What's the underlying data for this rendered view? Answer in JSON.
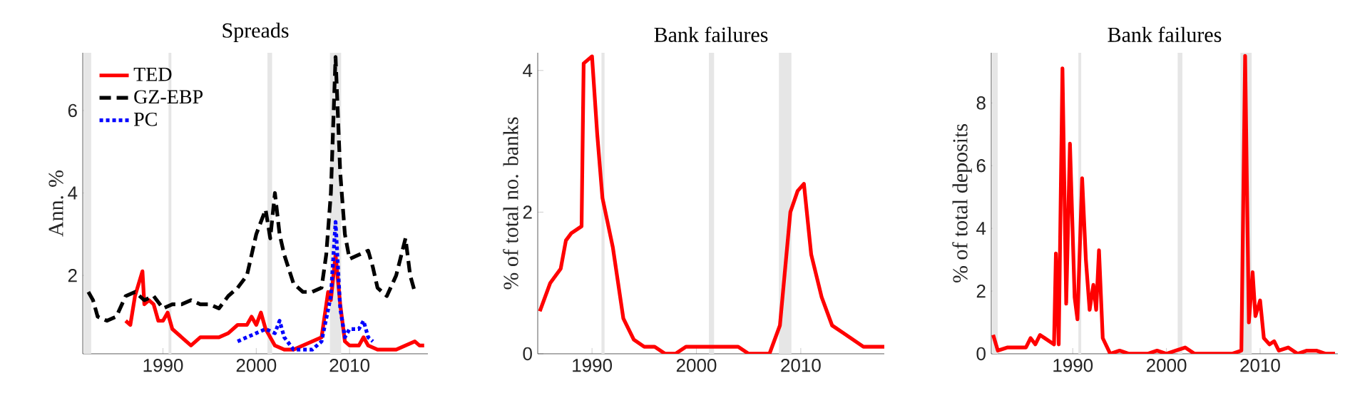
{
  "chart_data": [
    {
      "type": "line",
      "title": "Spreads",
      "ylabel": "Ann. %",
      "xlim": [
        1981.4,
        2018.4
      ],
      "ylim": [
        0.1,
        7.4
      ],
      "xticks": [
        1990,
        2000,
        2010
      ],
      "yticks": [
        2,
        4,
        6
      ],
      "legend": "top left",
      "bands": [
        {
          "axis": "x",
          "from": 1981.5,
          "to": 1982.3,
          "color": "#e6e6e6"
        },
        {
          "axis": "x",
          "from": 1990.6,
          "to": 1990.9,
          "color": "#e6e6e6"
        },
        {
          "axis": "x",
          "from": 2001.2,
          "to": 2001.7,
          "color": "#e6e6e6"
        },
        {
          "axis": "x",
          "from": 2007.9,
          "to": 2009.1,
          "color": "#e6e6e6"
        }
      ],
      "series": [
        {
          "name": "TED",
          "color": "#ff0000",
          "line_style": "solid",
          "x": [
            1986,
            1986.5,
            1987,
            1987.8,
            1988,
            1988.5,
            1989,
            1989.5,
            1990,
            1990.5,
            1991,
            1992,
            1992.5,
            1993,
            1994,
            1995,
            1996,
            1997,
            1998,
            1999,
            1999.5,
            2000,
            2000.5,
            2001,
            2002,
            2003,
            2004,
            2005,
            2006,
            2007,
            2007.7,
            2008,
            2008.5,
            2009,
            2009.5,
            2010,
            2011,
            2011.5,
            2012,
            2013,
            2014,
            2015,
            2016,
            2017,
            2017.5,
            2018
          ],
          "values": [
            0.9,
            0.8,
            1.5,
            2.1,
            1.3,
            1.4,
            1.3,
            0.9,
            0.9,
            1.1,
            0.7,
            0.5,
            0.4,
            0.3,
            0.5,
            0.5,
            0.5,
            0.6,
            0.8,
            0.8,
            1.0,
            0.8,
            1.1,
            0.7,
            0.3,
            0.2,
            0.2,
            0.3,
            0.4,
            0.5,
            1.6,
            1.4,
            2.5,
            1.3,
            0.4,
            0.3,
            0.3,
            0.5,
            0.3,
            0.2,
            0.2,
            0.2,
            0.3,
            0.4,
            0.3,
            0.3
          ]
        },
        {
          "name": "GZ-EBP",
          "color": "#000000",
          "line_style": "dashed",
          "x": [
            1982,
            1982.5,
            1983,
            1984,
            1985,
            1986,
            1987,
            1988,
            1989,
            1990,
            1991,
            1992,
            1993,
            1994,
            1995,
            1996,
            1997,
            1998,
            1999,
            2000,
            2001,
            2001.5,
            2002,
            2002.5,
            2003,
            2004,
            2005,
            2006,
            2007,
            2007.5,
            2008,
            2008.5,
            2009,
            2009.5,
            2010,
            2011,
            2012,
            2012.5,
            2013,
            2014,
            2015,
            2016,
            2016.5,
            2017
          ],
          "values": [
            1.6,
            1.4,
            1.0,
            0.9,
            1.0,
            1.5,
            1.6,
            1.4,
            1.5,
            1.2,
            1.3,
            1.3,
            1.4,
            1.3,
            1.3,
            1.2,
            1.5,
            1.7,
            2.0,
            3.0,
            3.6,
            2.9,
            4.0,
            3.0,
            2.5,
            1.8,
            1.6,
            1.6,
            1.7,
            2.5,
            4.0,
            7.3,
            4.5,
            3.0,
            2.4,
            2.5,
            2.6,
            2.2,
            1.7,
            1.5,
            2.0,
            2.9,
            2.0,
            1.6
          ]
        },
        {
          "name": "PC",
          "color": "#0000ff",
          "line_style": "dotted",
          "x": [
            1998,
            1999,
            2000,
            2001,
            2002,
            2002.5,
            2003,
            2004,
            2005,
            2006,
            2007,
            2008,
            2008.5,
            2009,
            2009.5,
            2010,
            2011,
            2011.5,
            2012,
            2012.5
          ],
          "values": [
            0.4,
            0.5,
            0.6,
            0.7,
            0.6,
            0.9,
            0.5,
            0.2,
            0.2,
            0.2,
            0.4,
            1.5,
            3.3,
            1.2,
            0.5,
            0.7,
            0.7,
            0.9,
            0.5,
            0.4
          ]
        }
      ]
    },
    {
      "type": "line",
      "title": "Bank failures",
      "ylabel": "% of total no. banks",
      "xlim": [
        1984.8,
        2018
      ],
      "ylim": [
        0,
        4.25
      ],
      "xticks": [
        1990,
        2000,
        2010
      ],
      "yticks": [
        0,
        2,
        4
      ],
      "bands": [
        {
          "axis": "x",
          "from": 1990.9,
          "to": 1991.2,
          "color": "#e6e6e6"
        },
        {
          "axis": "x",
          "from": 2001.2,
          "to": 2001.7,
          "color": "#e6e6e6"
        },
        {
          "axis": "x",
          "from": 2007.9,
          "to": 2009.1,
          "color": "#e6e6e6"
        }
      ],
      "series": [
        {
          "color": "#ff0000",
          "line_style": "solid",
          "x": [
            1985,
            1986,
            1987,
            1987.5,
            1988,
            1989,
            1989.2,
            1990,
            1990.5,
            1991,
            1992,
            1993,
            1994,
            1995,
            1996,
            1997,
            1998,
            1999,
            2000,
            2001,
            2002,
            2003,
            2004,
            2005,
            2006,
            2007,
            2008,
            2009,
            2009.7,
            2010.3,
            2011,
            2012,
            2013,
            2014,
            2015,
            2016,
            2017,
            2018
          ],
          "values": [
            0.6,
            1.0,
            1.2,
            1.6,
            1.7,
            1.8,
            4.1,
            4.2,
            3.1,
            2.2,
            1.5,
            0.5,
            0.2,
            0.1,
            0.1,
            0.0,
            0.0,
            0.1,
            0.1,
            0.1,
            0.1,
            0.1,
            0.1,
            0.0,
            0.0,
            0.0,
            0.4,
            2.0,
            2.3,
            2.4,
            1.4,
            0.8,
            0.4,
            0.3,
            0.2,
            0.1,
            0.1,
            0.1
          ]
        }
      ]
    },
    {
      "type": "line",
      "title": "Bank failures",
      "ylabel": "% of total deposits",
      "xlim": [
        1981.3,
        2018.3
      ],
      "ylim": [
        0,
        9.6
      ],
      "xticks": [
        1990,
        2000,
        2010
      ],
      "yticks": [
        0,
        2,
        4,
        6,
        8
      ],
      "bands": [
        {
          "axis": "x",
          "from": 1981.4,
          "to": 1982.0,
          "color": "#e6e6e6"
        },
        {
          "axis": "x",
          "from": 1990.6,
          "to": 1990.9,
          "color": "#e6e6e6"
        },
        {
          "axis": "x",
          "from": 2001.2,
          "to": 2001.7,
          "color": "#e6e6e6"
        },
        {
          "axis": "x",
          "from": 2007.9,
          "to": 2009.1,
          "color": "#e6e6e6"
        }
      ],
      "series": [
        {
          "color": "#ff0000",
          "line_style": "solid",
          "x": [
            1981.5,
            1982,
            1983,
            1984,
            1985,
            1985.5,
            1986,
            1986.5,
            1987,
            1988,
            1988.2,
            1988.5,
            1988.9,
            1989.3,
            1989.7,
            1990.2,
            1990.5,
            1991,
            1991.4,
            1991.8,
            1992.2,
            1992.5,
            1992.8,
            1993.2,
            1994,
            1995,
            1996,
            1998,
            1999,
            2000,
            2001,
            2002,
            2003,
            2005,
            2007,
            2008,
            2008.4,
            2008.8,
            2009.2,
            2009.5,
            2010,
            2010.4,
            2011,
            2011.5,
            2012,
            2013,
            2014,
            2015,
            2016,
            2017,
            2018
          ],
          "values": [
            0.6,
            0.1,
            0.2,
            0.2,
            0.2,
            0.5,
            0.3,
            0.6,
            0.5,
            0.3,
            3.2,
            0.3,
            9.1,
            1.6,
            6.7,
            1.8,
            1.1,
            5.6,
            3.0,
            1.4,
            2.2,
            1.4,
            3.3,
            0.5,
            0.0,
            0.1,
            0.0,
            0.0,
            0.1,
            0.0,
            0.1,
            0.2,
            0.0,
            0.0,
            0.0,
            0.1,
            9.5,
            1.0,
            2.6,
            1.2,
            1.7,
            0.5,
            0.3,
            0.4,
            0.1,
            0.2,
            0.0,
            0.1,
            0.1,
            0.0,
            0.0
          ]
        }
      ]
    }
  ]
}
